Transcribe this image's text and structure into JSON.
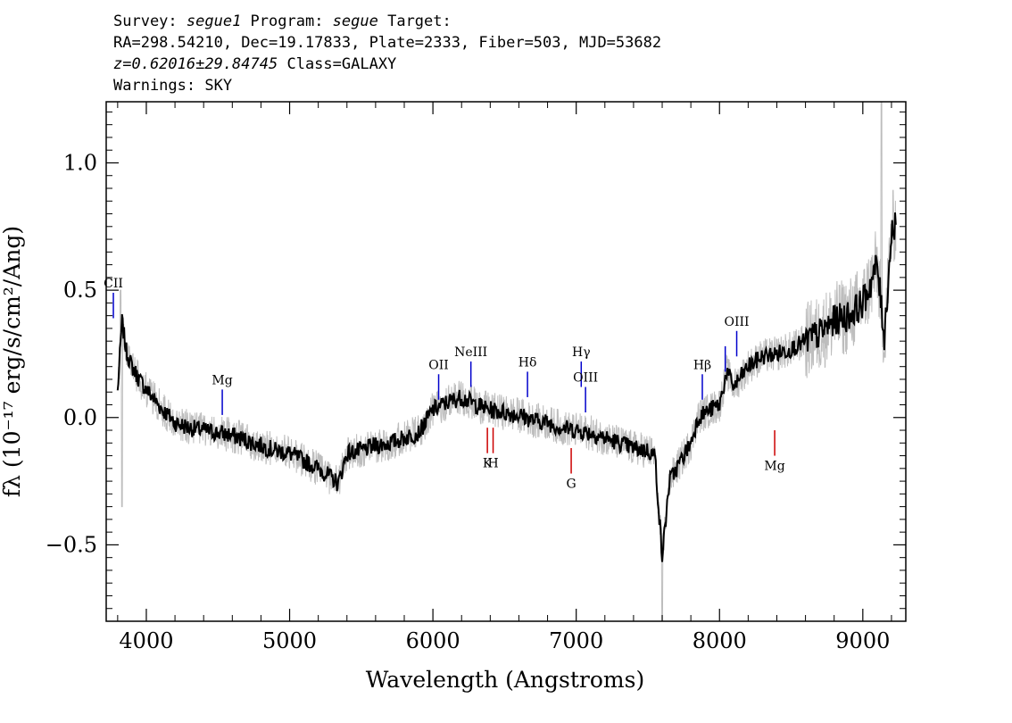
{
  "header": {
    "line1": {
      "survey_label": "Survey: ",
      "survey": "segue1",
      "program_label": " Program: ",
      "program": "segue",
      "target_label": " Target:"
    },
    "line2": "RA=298.54210, Dec=19.17833, Plate=2333, Fiber=503, MJD=53682",
    "line3": {
      "z": "z=0.62016±29.84745",
      "class": " Class=GALAXY"
    },
    "line4": "Warnings: SKY"
  },
  "chart_data": {
    "type": "line",
    "xlabel": "Wavelength (Angstroms)",
    "ylabel": "fλ (10⁻¹⁷ erg/s/cm²/Ang)",
    "xlim": [
      3720,
      9300
    ],
    "ylim": [
      -0.8,
      1.24
    ],
    "x_ticks": [
      4000,
      5000,
      6000,
      7000,
      8000,
      9000
    ],
    "x_tick_labels": [
      "4000",
      "5000",
      "6000",
      "7000",
      "8000",
      "9000"
    ],
    "y_ticks": [
      -0.5,
      0.0,
      0.5,
      1.0
    ],
    "y_tick_labels": [
      "−0.5",
      "0.0",
      "0.5",
      "1.0"
    ],
    "grid": false,
    "colors": {
      "flux": "#000000",
      "error_band": "#bdbdbd",
      "emission": "#0000cc",
      "absorption": "#cc0000"
    },
    "series": [
      {
        "role": "flux",
        "x": [
          3800,
          3830,
          3860,
          3900,
          3950,
          4000,
          4100,
          4200,
          4300,
          4400,
          4500,
          4600,
          4700,
          4800,
          4900,
          5000,
          5100,
          5200,
          5300,
          5340,
          5400,
          5500,
          5600,
          5700,
          5800,
          5900,
          6000,
          6100,
          6200,
          6300,
          6400,
          6500,
          6600,
          6700,
          6800,
          6900,
          7000,
          7100,
          7200,
          7300,
          7400,
          7500,
          7550,
          7600,
          7650,
          7700,
          7800,
          7850,
          7900,
          8000,
          8050,
          8100,
          8200,
          8300,
          8400,
          8500,
          8600,
          8700,
          8800,
          8900,
          9000,
          9050,
          9100,
          9150,
          9200,
          9230
        ],
        "y": [
          0.1,
          0.38,
          0.26,
          0.2,
          0.15,
          0.11,
          0.04,
          -0.02,
          -0.04,
          -0.05,
          -0.06,
          -0.07,
          -0.09,
          -0.11,
          -0.13,
          -0.14,
          -0.17,
          -0.2,
          -0.24,
          -0.26,
          -0.14,
          -0.13,
          -0.11,
          -0.1,
          -0.08,
          -0.06,
          0.03,
          0.06,
          0.08,
          0.05,
          0.03,
          0.02,
          0.01,
          -0.01,
          -0.02,
          -0.04,
          -0.05,
          -0.06,
          -0.08,
          -0.1,
          -0.12,
          -0.13,
          -0.15,
          -0.55,
          -0.25,
          -0.2,
          -0.1,
          0.0,
          0.02,
          0.05,
          0.18,
          0.12,
          0.2,
          0.24,
          0.25,
          0.27,
          0.3,
          0.33,
          0.38,
          0.4,
          0.45,
          0.52,
          0.6,
          0.32,
          0.72,
          0.78
        ],
        "noise_amplitude": 0.035,
        "noise_seed": 7
      },
      {
        "role": "error_band",
        "noise_amplitude": 0.07,
        "noise_seed": 19,
        "spikes": [
          {
            "x": 3820,
            "y": 0.5
          },
          {
            "x": 3830,
            "y": -0.35
          },
          {
            "x": 7600,
            "y": -0.8
          },
          {
            "x": 9130,
            "y": 1.24
          }
        ]
      }
    ],
    "lines": [
      {
        "label": "CII",
        "x": 3770,
        "y_top": 0.49,
        "y_bottom": 0.39,
        "color": "#0000cc",
        "label_pos": "above"
      },
      {
        "label": "Mg",
        "x": 4530,
        "y_top": 0.11,
        "y_bottom": 0.01,
        "color": "#0000cc",
        "label_pos": "above"
      },
      {
        "label": "OII",
        "x": 6040,
        "y_top": 0.17,
        "y_bottom": 0.07,
        "color": "#0000cc",
        "label_pos": "above"
      },
      {
        "label": "NeIII",
        "x": 6265,
        "y_top": 0.22,
        "y_bottom": 0.12,
        "color": "#0000cc",
        "label_pos": "above"
      },
      {
        "label": "Hδ",
        "x": 6660,
        "y_top": 0.18,
        "y_bottom": 0.08,
        "color": "#0000cc",
        "label_pos": "above"
      },
      {
        "label": "Hγ",
        "x": 7035,
        "y_top": 0.22,
        "y_bottom": 0.12,
        "color": "#0000cc",
        "label_pos": "above"
      },
      {
        "label": "OIII",
        "x": 7065,
        "y_top": 0.12,
        "y_bottom": 0.02,
        "color": "#0000cc",
        "label_pos": "above"
      },
      {
        "label": "Hβ",
        "x": 7880,
        "y_top": 0.17,
        "y_bottom": 0.07,
        "color": "#0000cc",
        "label_pos": "above"
      },
      {
        "label": "",
        "x": 8040,
        "y_top": 0.28,
        "y_bottom": 0.18,
        "color": "#0000cc",
        "label_pos": "none"
      },
      {
        "label": "OIII",
        "x": 8120,
        "y_top": 0.34,
        "y_bottom": 0.24,
        "color": "#0000cc",
        "label_pos": "above"
      },
      {
        "label": "K",
        "x": 6380,
        "y_top": -0.04,
        "y_bottom": -0.14,
        "color": "#cc0000",
        "label_pos": "below"
      },
      {
        "label": "H",
        "x": 6420,
        "y_top": -0.04,
        "y_bottom": -0.14,
        "color": "#cc0000",
        "label_pos": "below"
      },
      {
        "label": "G",
        "x": 6965,
        "y_top": -0.12,
        "y_bottom": -0.22,
        "color": "#cc0000",
        "label_pos": "below"
      },
      {
        "label": "Mg",
        "x": 8385,
        "y_top": -0.05,
        "y_bottom": -0.15,
        "color": "#cc0000",
        "label_pos": "below"
      }
    ]
  }
}
